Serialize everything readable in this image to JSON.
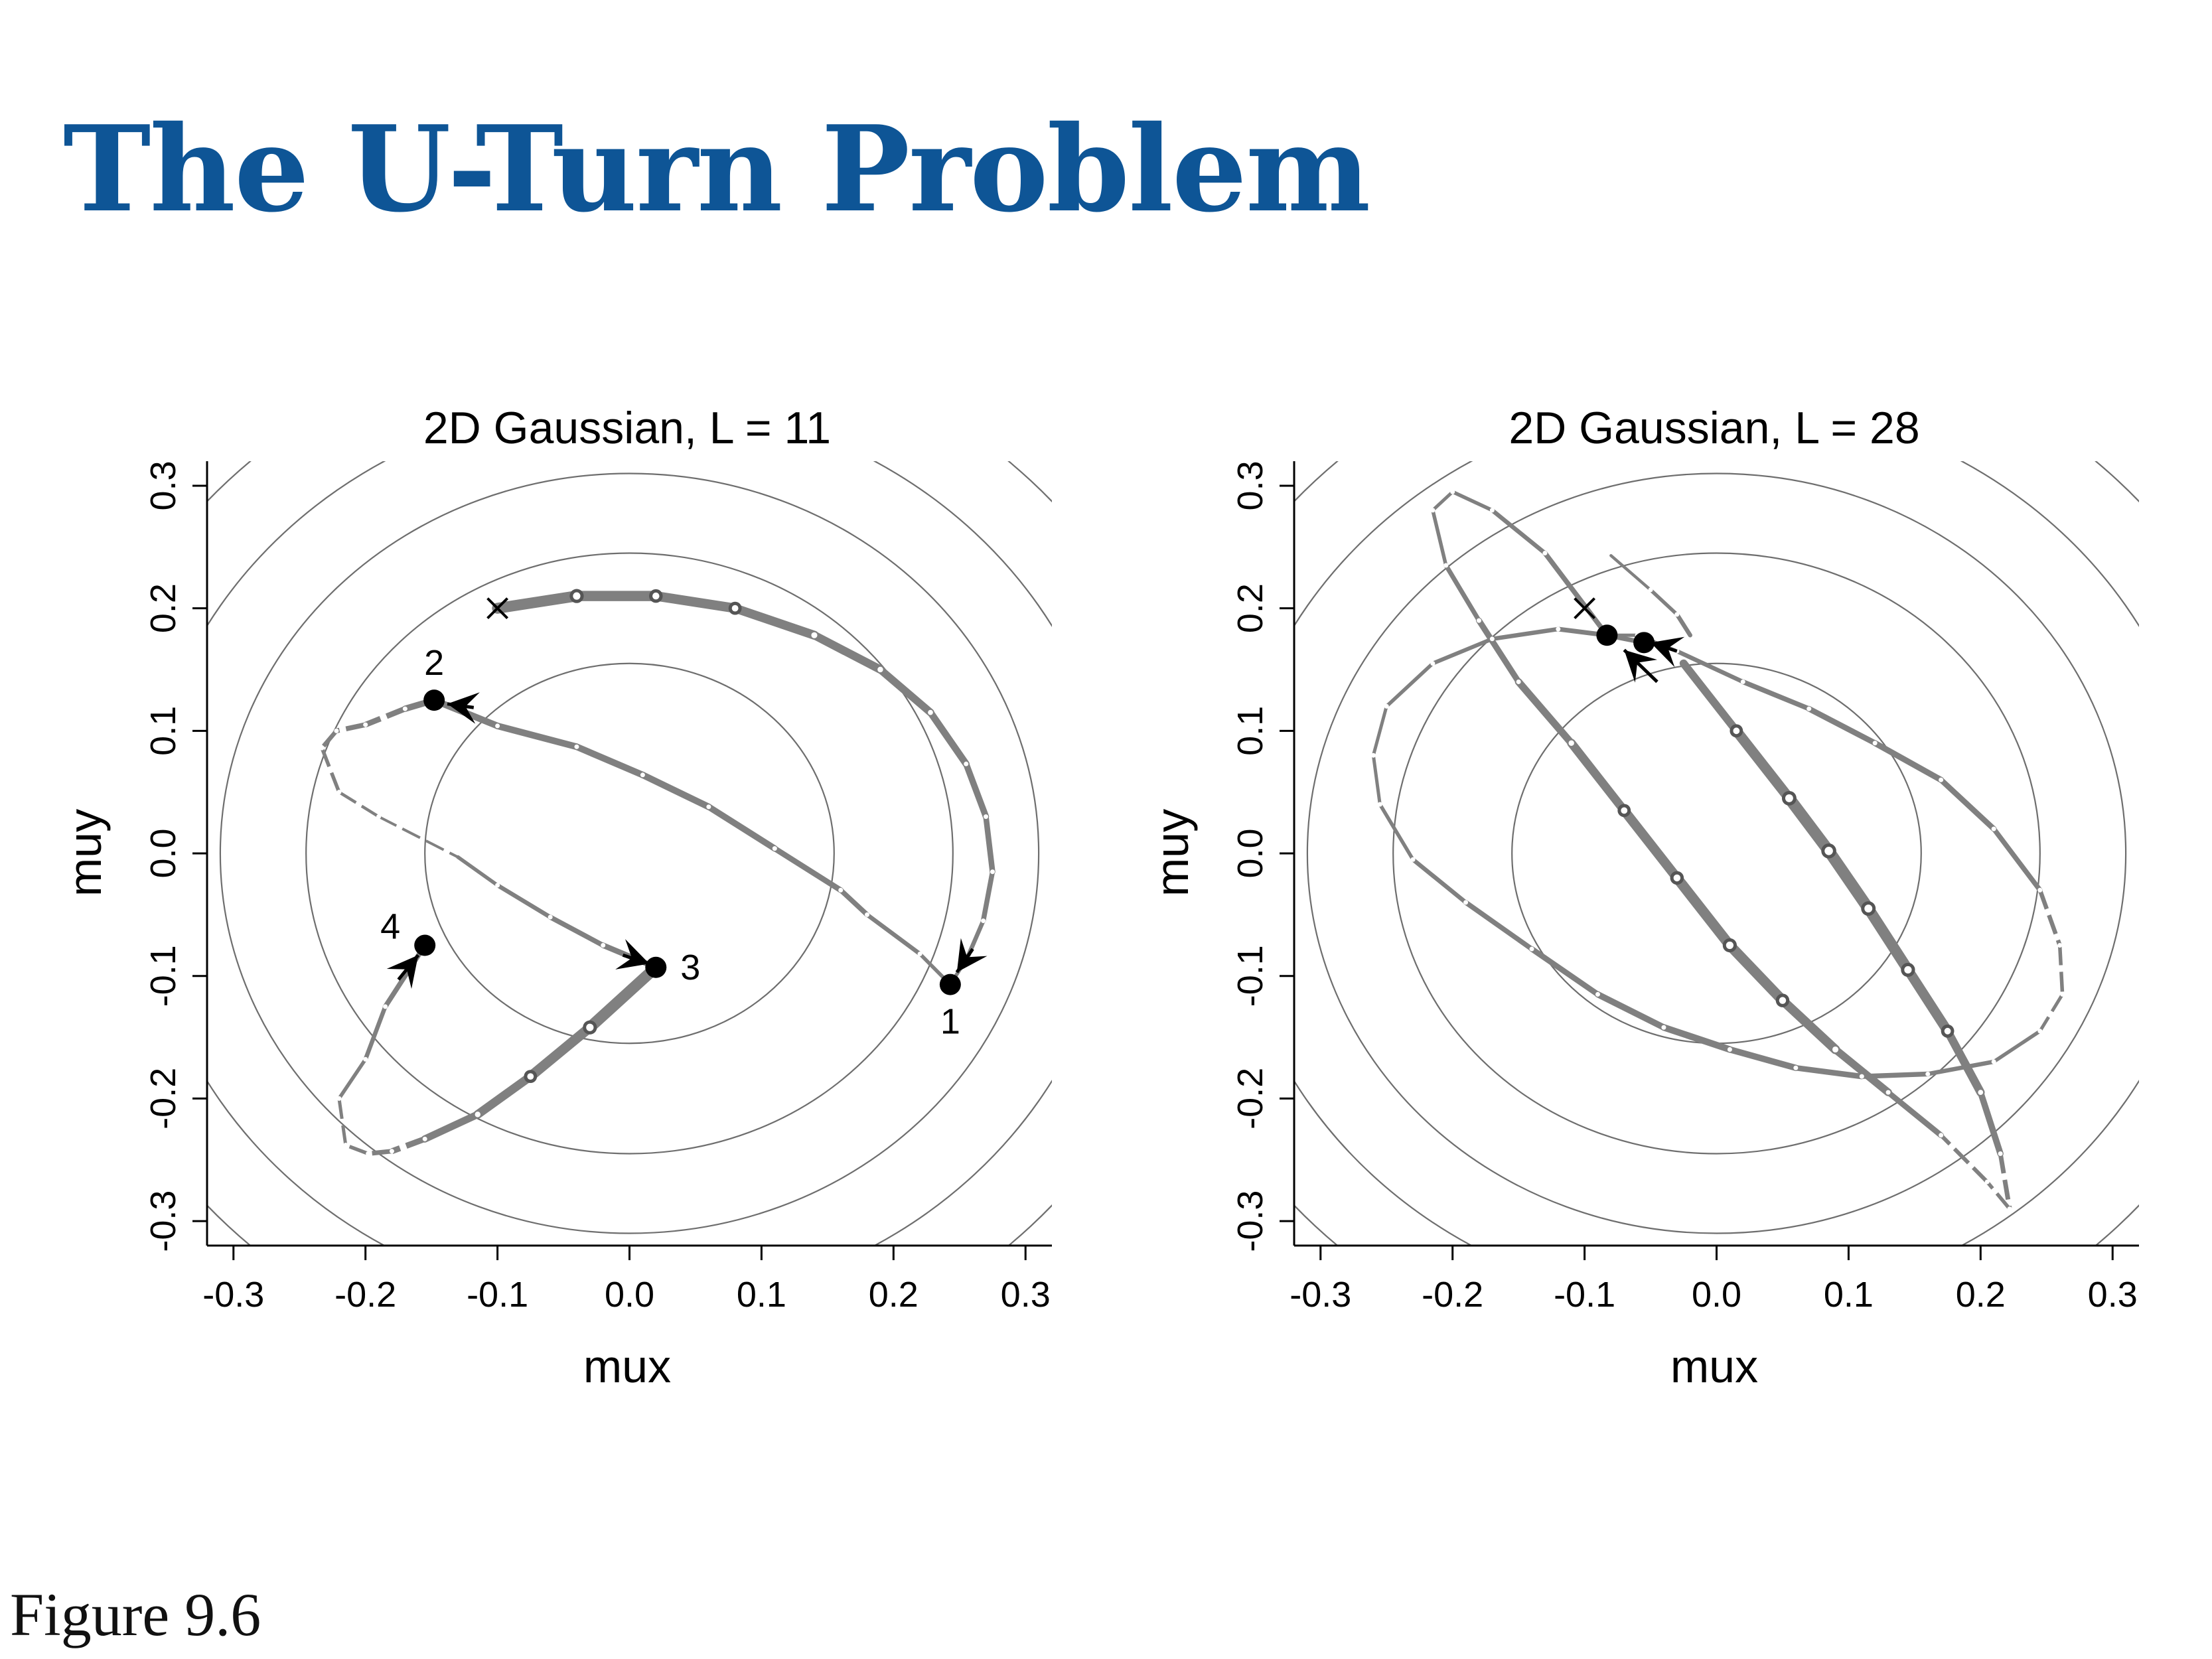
{
  "page": {
    "title": "The U-Turn Problem",
    "caption": "Figure 9.6"
  },
  "colors": {
    "title": "#0e5596",
    "trajectory": "#808080",
    "contour": "#6e6e6e",
    "point": "#000000"
  },
  "chart_data": [
    {
      "type": "line",
      "title": "2D Gaussian, L = 11",
      "xlabel": "mux",
      "ylabel": "muy",
      "xlim": [
        -0.32,
        0.32
      ],
      "ylim": [
        -0.32,
        0.32
      ],
      "xticks": [
        "-0.3",
        "-0.2",
        "-0.1",
        "0.0",
        "0.1",
        "0.2",
        "0.3"
      ],
      "yticks": [
        "-0.3",
        "-0.2",
        "-0.1",
        "0.0",
        "0.1",
        "0.2",
        "0.3"
      ],
      "contours": [
        0.155,
        0.245,
        0.31,
        0.37,
        0.43
      ],
      "start": [
        -0.1,
        0.2
      ],
      "legs": [
        {
          "points": [
            [
              -0.1,
              0.2
            ],
            [
              -0.04,
              0.21
            ],
            [
              0.02,
              0.21
            ],
            [
              0.08,
              0.2
            ],
            [
              0.14,
              0.178
            ],
            [
              0.19,
              0.15
            ],
            [
              0.228,
              0.115
            ],
            [
              0.255,
              0.073
            ],
            [
              0.27,
              0.03
            ],
            [
              0.275,
              -0.015
            ],
            [
              0.268,
              -0.055
            ],
            [
              0.256,
              -0.085
            ],
            [
              0.243,
              -0.107
            ]
          ],
          "widths": [
            17,
            16,
            15,
            14,
            13,
            12,
            11,
            10,
            9,
            8,
            7,
            6,
            5
          ],
          "dash_from": 13
        },
        {
          "points": [
            [
              0.243,
              -0.107
            ],
            [
              0.22,
              -0.082
            ],
            [
              0.18,
              -0.05
            ],
            [
              0.16,
              -0.03
            ],
            [
              0.11,
              0.004
            ],
            [
              0.06,
              0.038
            ],
            [
              0.01,
              0.064
            ],
            [
              -0.04,
              0.087
            ],
            [
              -0.1,
              0.104
            ],
            [
              -0.148,
              0.125
            ],
            [
              -0.17,
              0.118
            ],
            [
              -0.2,
              0.105
            ],
            [
              -0.222,
              0.1
            ],
            [
              -0.233,
              0.086
            ],
            [
              -0.22,
              0.05
            ],
            [
              -0.19,
              0.03
            ],
            [
              -0.13,
              -0.003
            ]
          ],
          "widths": [
            5,
            6,
            7,
            8,
            9,
            10,
            10,
            10,
            10,
            10,
            9,
            8,
            7,
            6,
            5,
            4,
            4
          ],
          "dash_from": 10,
          "dash_to": 16
        },
        {
          "points": [
            [
              -0.13,
              -0.003
            ],
            [
              -0.1,
              -0.026
            ],
            [
              -0.06,
              -0.052
            ],
            [
              -0.02,
              -0.075
            ],
            [
              0.02,
              -0.093
            ]
          ],
          "widths": [
            5,
            6,
            7,
            8,
            9
          ],
          "dash_from": 99
        },
        {
          "points": [
            [
              0.02,
              -0.093
            ],
            [
              -0.03,
              -0.142
            ],
            [
              -0.075,
              -0.182
            ],
            [
              -0.115,
              -0.213
            ],
            [
              -0.155,
              -0.233
            ],
            [
              -0.18,
              -0.243
            ],
            [
              -0.198,
              -0.245
            ],
            [
              -0.215,
              -0.238
            ],
            [
              -0.22,
              -0.2
            ],
            [
              -0.2,
              -0.168
            ],
            [
              -0.185,
              -0.125
            ],
            [
              -0.155,
              -0.075
            ]
          ],
          "widths": [
            18,
            16,
            14,
            12,
            10,
            8,
            6,
            5,
            5,
            6,
            7,
            8
          ],
          "dash_from": 4,
          "dash_to": 8
        }
      ],
      "numbered_points": [
        {
          "label": "1",
          "xy": [
            0.243,
            -0.107
          ]
        },
        {
          "label": "2",
          "xy": [
            -0.148,
            0.125
          ]
        },
        {
          "label": "3",
          "xy": [
            0.02,
            -0.093
          ]
        },
        {
          "label": "4",
          "xy": [
            -0.155,
            -0.075
          ]
        }
      ],
      "arrows": [
        {
          "xy": [
            0.26,
            -0.078
          ],
          "to": [
            0.248,
            -0.097
          ]
        },
        {
          "xy": [
            -0.118,
            0.119
          ],
          "to": [
            -0.138,
            0.122
          ]
        },
        {
          "xy": [
            -0.005,
            -0.083
          ],
          "to": [
            0.015,
            -0.09
          ]
        },
        {
          "xy": [
            -0.175,
            -0.103
          ],
          "to": [
            -0.16,
            -0.083
          ]
        }
      ],
      "point_labels_offset": [
        [
          0,
          1
        ],
        [
          0,
          -1
        ],
        [
          1,
          0
        ],
        [
          -1,
          -0.5
        ]
      ]
    },
    {
      "type": "line",
      "title": "2D Gaussian, L = 28",
      "xlabel": "mux",
      "ylabel": "muy",
      "xlim": [
        -0.32,
        0.32
      ],
      "ylim": [
        -0.32,
        0.32
      ],
      "xticks": [
        "-0.3",
        "-0.2",
        "-0.1",
        "0.0",
        "0.1",
        "0.2",
        "0.3"
      ],
      "yticks": [
        "-0.3",
        "-0.2",
        "-0.1",
        "0.0",
        "0.1",
        "0.2",
        "0.3"
      ],
      "contours": [
        0.155,
        0.245,
        0.31,
        0.37,
        0.43
      ],
      "start": [
        -0.1,
        0.2
      ],
      "legs": [
        {
          "points": [
            [
              -0.025,
              0.155
            ],
            [
              0.015,
              0.1
            ],
            [
              0.055,
              0.045
            ],
            [
              0.085,
              0.002
            ],
            [
              0.115,
              -0.045
            ],
            [
              0.145,
              -0.095
            ],
            [
              0.175,
              -0.145
            ],
            [
              0.2,
              -0.195
            ],
            [
              0.215,
              -0.245
            ],
            [
              0.222,
              -0.29
            ],
            [
              0.205,
              -0.268
            ],
            [
              0.17,
              -0.23
            ],
            [
              0.13,
              -0.195
            ],
            [
              0.09,
              -0.16
            ],
            [
              0.05,
              -0.12
            ],
            [
              0.01,
              -0.075
            ],
            [
              -0.03,
              -0.02
            ],
            [
              -0.07,
              0.035
            ],
            [
              -0.11,
              0.09
            ],
            [
              -0.15,
              0.14
            ],
            [
              -0.18,
              0.19
            ],
            [
              -0.205,
              0.235
            ],
            [
              -0.215,
              0.28
            ],
            [
              -0.2,
              0.295
            ],
            [
              -0.17,
              0.28
            ],
            [
              -0.13,
              0.245
            ],
            [
              -0.083,
              0.178
            ]
          ],
          "widths": [
            10,
            14,
            17,
            18,
            17,
            16,
            14,
            11,
            8,
            6,
            5,
            7,
            10,
            13,
            15,
            16,
            15,
            14,
            12,
            10,
            8,
            6,
            5,
            5,
            6,
            7,
            8
          ],
          "dash_from": 8,
          "dash_to": 11
        },
        {
          "points": [
            [
              -0.083,
              0.178
            ],
            [
              -0.06,
              0.178
            ],
            [
              -0.03,
              0.165
            ],
            [
              0.02,
              0.14
            ],
            [
              0.07,
              0.118
            ],
            [
              0.12,
              0.09
            ],
            [
              0.17,
              0.06
            ],
            [
              0.21,
              0.02
            ],
            [
              0.245,
              -0.03
            ],
            [
              0.26,
              -0.075
            ],
            [
              0.262,
              -0.115
            ],
            [
              0.245,
              -0.145
            ],
            [
              0.21,
              -0.17
            ],
            [
              0.16,
              -0.18
            ],
            [
              0.11,
              -0.182
            ],
            [
              0.06,
              -0.175
            ],
            [
              0.01,
              -0.16
            ],
            [
              -0.04,
              -0.142
            ],
            [
              -0.09,
              -0.115
            ],
            [
              -0.14,
              -0.078
            ],
            [
              -0.19,
              -0.04
            ],
            [
              -0.23,
              -0.005
            ],
            [
              -0.255,
              0.04
            ],
            [
              -0.26,
              0.08
            ],
            [
              -0.25,
              0.12
            ],
            [
              -0.215,
              0.155
            ],
            [
              -0.17,
              0.175
            ],
            [
              -0.12,
              0.183
            ],
            [
              -0.083,
              0.178
            ],
            [
              -0.055,
              0.172
            ]
          ],
          "widths": [
            5,
            5,
            6,
            7,
            8,
            9,
            9,
            8,
            7,
            6,
            5,
            5,
            6,
            7,
            8,
            9,
            10,
            10,
            9,
            8,
            7,
            6,
            5,
            5,
            5,
            6,
            6,
            7,
            7,
            7
          ],
          "dash_from": 8,
          "dash_to": 11
        },
        {
          "points": [
            [
              -0.08,
              0.243
            ],
            [
              -0.05,
              0.215
            ],
            [
              -0.03,
              0.195
            ],
            [
              -0.02,
              0.178
            ]
          ],
          "widths": [
            4,
            5,
            6,
            7
          ],
          "dash_from": 99
        }
      ],
      "numbered_points": [
        {
          "label": "",
          "xy": [
            -0.083,
            0.178
          ]
        },
        {
          "label": "",
          "xy": [
            -0.055,
            0.172
          ]
        }
      ],
      "arrows": [
        {
          "xy": [
            -0.03,
            0.165
          ],
          "to": [
            -0.05,
            0.172
          ]
        },
        {
          "xy": [
            -0.045,
            0.14
          ],
          "to": [
            -0.07,
            0.166
          ]
        }
      ],
      "point_labels_offset": [
        [
          0,
          0
        ],
        [
          0,
          0
        ]
      ]
    }
  ]
}
